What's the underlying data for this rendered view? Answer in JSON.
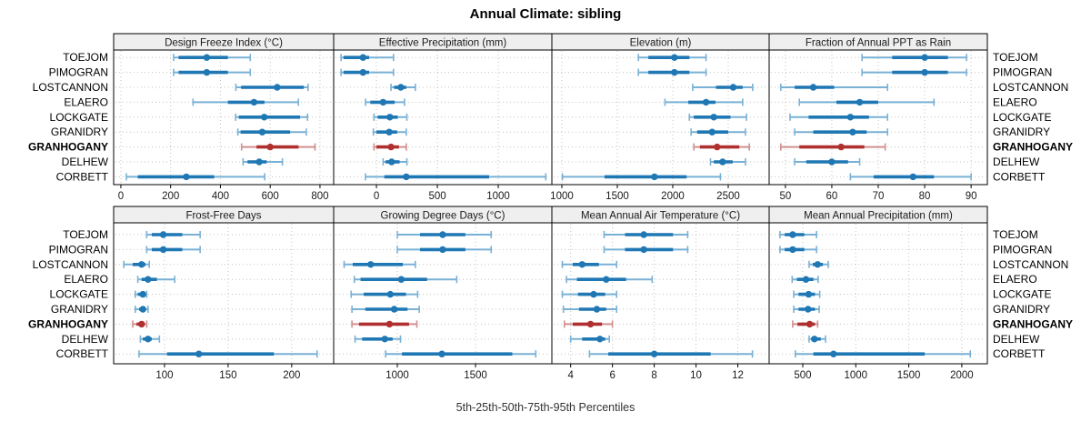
{
  "title": "Annual Climate: sibling",
  "footer": "5th-25th-50th-75th-95th Percentiles",
  "sites": [
    "TOEJOM",
    "PIMOGRAN",
    "LOSTCANNON",
    "ELAERO",
    "LOCKGATE",
    "GRANIDRY",
    "GRANHOGANY",
    "DELHEW",
    "CORBETT"
  ],
  "highlight_site": "GRANHOGANY",
  "colors": {
    "series_main": "#1f77b4",
    "series_light": "#79b1d6",
    "highlight_main": "#b03030",
    "highlight_light": "#d09090",
    "strip_bg": "#efefef",
    "panel_border": "#000000",
    "grid": "#c3c3c3",
    "tick_text": "#1a1a1a",
    "label_text": "#000000"
  },
  "chart_data": {
    "type": "percentile-dotplot",
    "note": "trellis of 8 panels; each row of each panel shows 5th-25th-50th-75th-95th percentiles (whisker with end caps = 5th-95th, thick bar = 25th-75th, dot = median)",
    "percentile_labels": [
      "5th",
      "25th",
      "50th",
      "75th",
      "95th"
    ],
    "panels": [
      {
        "title": "Design Freeze Index (°C)",
        "row": 0,
        "col": 0,
        "xlim": [
          -29,
          855
        ],
        "ticks": [
          0,
          200,
          400,
          600,
          800
        ],
        "values": [
          [
            212,
            232,
            345,
            430,
            520
          ],
          [
            212,
            232,
            345,
            430,
            520
          ],
          [
            462,
            483,
            628,
            735,
            752
          ],
          [
            290,
            430,
            535,
            577,
            713
          ],
          [
            461,
            474,
            576,
            720,
            750
          ],
          [
            470,
            481,
            568,
            680,
            745
          ],
          [
            485,
            545,
            600,
            714,
            780
          ],
          [
            491,
            509,
            556,
            586,
            649
          ],
          [
            22,
            68,
            263,
            375,
            578
          ]
        ]
      },
      {
        "title": "Effective Precipitation (mm)",
        "row": 0,
        "col": 1,
        "xlim": [
          -351,
          1440
        ],
        "ticks": [
          0,
          500,
          1000
        ],
        "values": [
          [
            -290,
            -270,
            -110,
            -60,
            140
          ],
          [
            -290,
            -270,
            -110,
            -60,
            140
          ],
          [
            120,
            145,
            200,
            245,
            320
          ],
          [
            -90,
            -50,
            55,
            150,
            230
          ],
          [
            -20,
            10,
            110,
            175,
            250
          ],
          [
            -25,
            0,
            105,
            170,
            245
          ],
          [
            -20,
            0,
            120,
            185,
            245
          ],
          [
            55,
            75,
            125,
            190,
            250
          ],
          [
            -90,
            65,
            245,
            925,
            1390
          ]
        ]
      },
      {
        "title": "Elevation (m)",
        "row": 0,
        "col": 2,
        "xlim": [
          910,
          2869
        ],
        "ticks": [
          1000,
          1500,
          2000,
          2500
        ],
        "values": [
          [
            1690,
            1780,
            2015,
            2150,
            2300
          ],
          [
            1690,
            1780,
            2015,
            2150,
            2300
          ],
          [
            2180,
            2390,
            2545,
            2630,
            2720
          ],
          [
            1930,
            2140,
            2300,
            2385,
            2630
          ],
          [
            2150,
            2190,
            2370,
            2520,
            2665
          ],
          [
            2165,
            2220,
            2355,
            2500,
            2655
          ],
          [
            2190,
            2245,
            2400,
            2600,
            2690
          ],
          [
            2340,
            2370,
            2450,
            2540,
            2655
          ],
          [
            1005,
            1385,
            1835,
            2125,
            2430
          ]
        ]
      },
      {
        "title": "Fraction of Annual PPT as Rain",
        "row": 0,
        "col": 3,
        "xlim": [
          46.5,
          93.5
        ],
        "ticks": [
          50,
          60,
          70,
          80,
          90
        ],
        "values": [
          [
            66.5,
            73,
            80,
            85,
            89
          ],
          [
            66.5,
            73,
            80,
            85,
            89
          ],
          [
            49,
            52,
            56,
            60.5,
            72
          ],
          [
            53,
            61,
            66,
            70,
            82
          ],
          [
            51,
            55,
            64,
            68,
            72
          ],
          [
            52,
            56,
            64.5,
            67.5,
            72
          ],
          [
            49,
            53,
            62,
            67,
            71.5
          ],
          [
            52,
            54.5,
            60,
            63.5,
            66
          ],
          [
            64,
            69,
            77.5,
            82,
            90
          ]
        ]
      },
      {
        "title": "Frost-Free Days",
        "row": 1,
        "col": 0,
        "xlim": [
          60,
          233
        ],
        "ticks": [
          100,
          150,
          200
        ],
        "values": [
          [
            86,
            90,
            99,
            114,
            128
          ],
          [
            86,
            90,
            99,
            114,
            128
          ],
          [
            68,
            75,
            82,
            85,
            88
          ],
          [
            79,
            82,
            87,
            94,
            108
          ],
          [
            77,
            79,
            83,
            85,
            86
          ],
          [
            77,
            80,
            83,
            85,
            87
          ],
          [
            75,
            78,
            82,
            84,
            86
          ],
          [
            81,
            83,
            87,
            90,
            96
          ],
          [
            80,
            102,
            127,
            186,
            220
          ]
        ]
      },
      {
        "title": "Growing Degree Days (°C)",
        "row": 1,
        "col": 1,
        "xlim": [
          593,
          1988
        ],
        "ticks": [
          1000,
          1500
        ],
        "values": [
          [
            1000,
            1145,
            1290,
            1435,
            1600
          ],
          [
            1000,
            1145,
            1290,
            1435,
            1600
          ],
          [
            660,
            715,
            830,
            1035,
            1115
          ],
          [
            725,
            765,
            1025,
            1190,
            1380
          ],
          [
            705,
            785,
            955,
            1055,
            1130
          ],
          [
            710,
            795,
            980,
            1065,
            1140
          ],
          [
            710,
            755,
            950,
            1075,
            1125
          ],
          [
            730,
            775,
            920,
            970,
            1020
          ],
          [
            925,
            1030,
            1285,
            1735,
            1885
          ]
        ]
      },
      {
        "title": "Mean Annual Air Temperature (°C)",
        "row": 1,
        "col": 2,
        "xlim": [
          3.1,
          13.5
        ],
        "ticks": [
          4,
          6,
          8,
          10,
          12
        ],
        "values": [
          [
            5.6,
            6.6,
            7.5,
            8.9,
            9.6
          ],
          [
            5.6,
            6.6,
            7.5,
            8.9,
            9.6
          ],
          [
            3.6,
            4.1,
            4.55,
            5.35,
            6.2
          ],
          [
            3.8,
            4.3,
            5.7,
            6.65,
            7.9
          ],
          [
            3.6,
            4.35,
            5.1,
            5.65,
            6.2
          ],
          [
            3.65,
            4.4,
            5.25,
            5.7,
            6.2
          ],
          [
            3.7,
            4.1,
            4.95,
            5.5,
            6.0
          ],
          [
            4.0,
            4.55,
            5.4,
            5.65,
            5.85
          ],
          [
            4.9,
            5.8,
            8.0,
            10.7,
            12.7
          ]
        ]
      },
      {
        "title": "Mean Annual Precipitation (mm)",
        "row": 1,
        "col": 3,
        "xlim": [
          183,
          2241
        ],
        "ticks": [
          500,
          1000,
          1500,
          2000
        ],
        "values": [
          [
            285,
            330,
            405,
            515,
            630
          ],
          [
            285,
            330,
            405,
            515,
            630
          ],
          [
            560,
            595,
            640,
            690,
            740
          ],
          [
            400,
            445,
            530,
            600,
            645
          ],
          [
            415,
            460,
            555,
            615,
            660
          ],
          [
            415,
            460,
            550,
            615,
            655
          ],
          [
            405,
            450,
            565,
            615,
            640
          ],
          [
            560,
            580,
            610,
            670,
            715
          ],
          [
            430,
            600,
            790,
            1650,
            2080
          ]
        ]
      }
    ]
  }
}
